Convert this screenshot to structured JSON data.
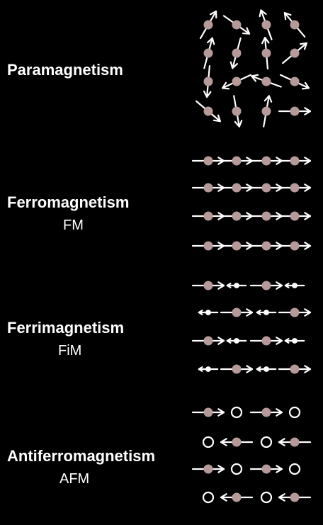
{
  "colors": {
    "background": "#000000",
    "text": "#ffffff",
    "atom": "#b69a9a",
    "atom_alt": "#ffffff",
    "arrow": "#ffffff"
  },
  "sections": [
    {
      "name": "Paramagnetism",
      "abbr": "",
      "grid": {
        "cols": 4,
        "rows": 4,
        "spin_angles_deg": [
          [
            -60,
            35,
            -110,
            -130
          ],
          [
            -75,
            105,
            -95,
            -40
          ],
          [
            95,
            155,
            200,
            25
          ],
          [
            40,
            80,
            -80,
            0
          ]
        ],
        "empty_sites": []
      }
    },
    {
      "name": "Ferromagnetism",
      "abbr": "FM",
      "grid": {
        "cols": 4,
        "rows": 4,
        "spins": [
          [
            "right",
            "right",
            "right",
            "right"
          ],
          [
            "right",
            "right",
            "right",
            "right"
          ],
          [
            "right",
            "right",
            "right",
            "right"
          ],
          [
            "right",
            "right",
            "right",
            "right"
          ]
        ]
      }
    },
    {
      "name": "Ferrimagnetism",
      "abbr": "FiM",
      "grid": {
        "cols": 4,
        "rows": 4,
        "spins": [
          [
            "right",
            "left-small",
            "right",
            "left-small"
          ],
          [
            "left-small",
            "right",
            "left-small",
            "right"
          ],
          [
            "right",
            "left-small",
            "right",
            "left-small"
          ],
          [
            "left-small",
            "right",
            "left-small",
            "right"
          ]
        ]
      }
    },
    {
      "name": "Antiferromagnetism",
      "abbr": "AFM",
      "grid": {
        "cols": 4,
        "rows": 4,
        "spins": [
          [
            "right",
            "empty",
            "right",
            "empty"
          ],
          [
            "empty",
            "left",
            "empty",
            "left"
          ],
          [
            "right",
            "empty",
            "right",
            "empty"
          ],
          [
            "empty",
            "left",
            "empty",
            "left"
          ]
        ]
      }
    }
  ]
}
